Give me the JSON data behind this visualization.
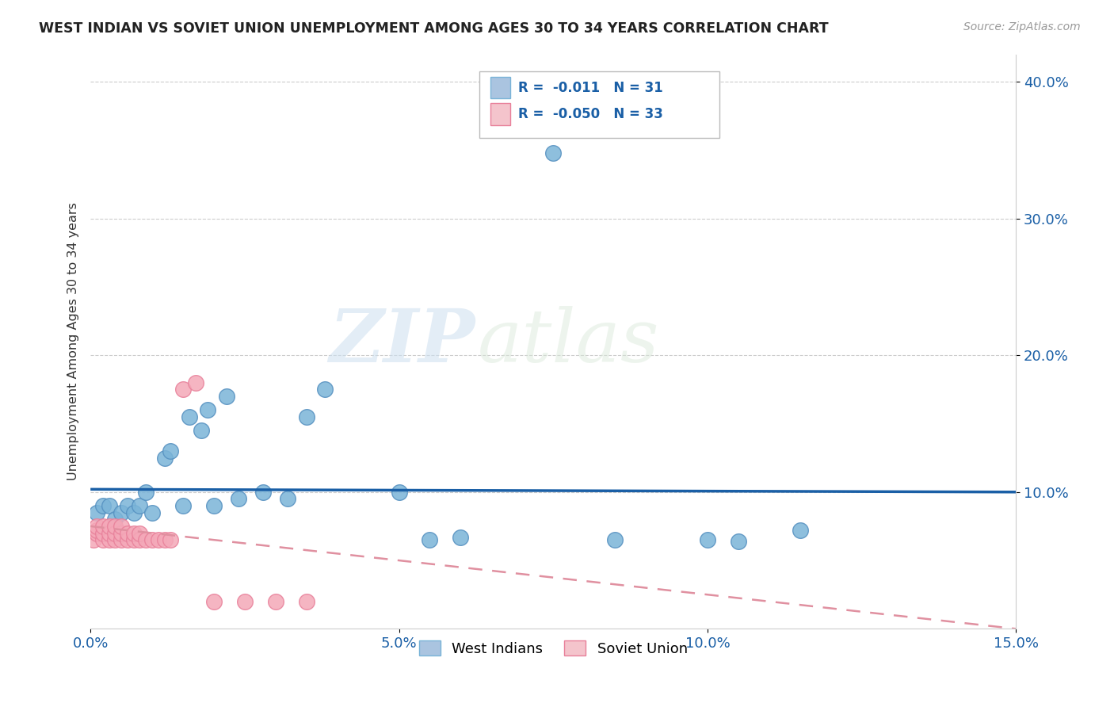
{
  "title": "WEST INDIAN VS SOVIET UNION UNEMPLOYMENT AMONG AGES 30 TO 34 YEARS CORRELATION CHART",
  "source": "Source: ZipAtlas.com",
  "ylabel": "Unemployment Among Ages 30 to 34 years",
  "xlim": [
    0.0,
    0.15
  ],
  "ylim": [
    0.0,
    0.42
  ],
  "xtick_vals": [
    0.0,
    0.05,
    0.1,
    0.15
  ],
  "xtick_labels": [
    "0.0%",
    "5.0%",
    "10.0%",
    "15.0%"
  ],
  "ytick_vals": [
    0.1,
    0.2,
    0.3,
    0.4
  ],
  "ytick_labels": [
    "10.0%",
    "20.0%",
    "30.0%",
    "40.0%"
  ],
  "grid_color": "#cccccc",
  "background_color": "#ffffff",
  "watermark_zip": "ZIP",
  "watermark_atlas": "atlas",
  "blue_R": "-0.011",
  "blue_N": "31",
  "pink_R": "-0.050",
  "pink_N": "33",
  "blue_dot_color": "#7ab4d8",
  "blue_dot_edge": "#5590c0",
  "pink_dot_color": "#f4a8b8",
  "pink_dot_edge": "#e8809a",
  "blue_line_color": "#1a5fa6",
  "pink_line_color": "#e090a0",
  "west_indian_x": [
    0.001,
    0.002,
    0.003,
    0.004,
    0.005,
    0.006,
    0.007,
    0.008,
    0.009,
    0.01,
    0.012,
    0.013,
    0.015,
    0.016,
    0.018,
    0.019,
    0.02,
    0.022,
    0.024,
    0.028,
    0.032,
    0.035,
    0.038,
    0.05,
    0.055,
    0.06,
    0.075,
    0.085,
    0.1,
    0.105,
    0.115
  ],
  "west_indian_y": [
    0.085,
    0.09,
    0.09,
    0.08,
    0.085,
    0.09,
    0.085,
    0.09,
    0.1,
    0.085,
    0.125,
    0.13,
    0.09,
    0.155,
    0.145,
    0.16,
    0.09,
    0.17,
    0.095,
    0.1,
    0.095,
    0.155,
    0.175,
    0.1,
    0.065,
    0.067,
    0.348,
    0.065,
    0.065,
    0.064,
    0.072
  ],
  "soviet_x": [
    0.0005,
    0.001,
    0.001,
    0.001,
    0.002,
    0.002,
    0.002,
    0.003,
    0.003,
    0.003,
    0.004,
    0.004,
    0.004,
    0.005,
    0.005,
    0.005,
    0.006,
    0.006,
    0.007,
    0.007,
    0.008,
    0.008,
    0.009,
    0.01,
    0.011,
    0.012,
    0.013,
    0.015,
    0.017,
    0.02,
    0.025,
    0.03,
    0.035
  ],
  "soviet_y": [
    0.065,
    0.07,
    0.072,
    0.075,
    0.065,
    0.07,
    0.075,
    0.065,
    0.07,
    0.075,
    0.065,
    0.07,
    0.075,
    0.065,
    0.07,
    0.075,
    0.065,
    0.07,
    0.065,
    0.07,
    0.065,
    0.07,
    0.065,
    0.065,
    0.065,
    0.065,
    0.065,
    0.175,
    0.18,
    0.02,
    0.02,
    0.02,
    0.02
  ],
  "blue_line_y0": 0.102,
  "blue_line_y1": 0.1,
  "pink_line_y0": 0.075,
  "pink_line_y1": 0.0
}
